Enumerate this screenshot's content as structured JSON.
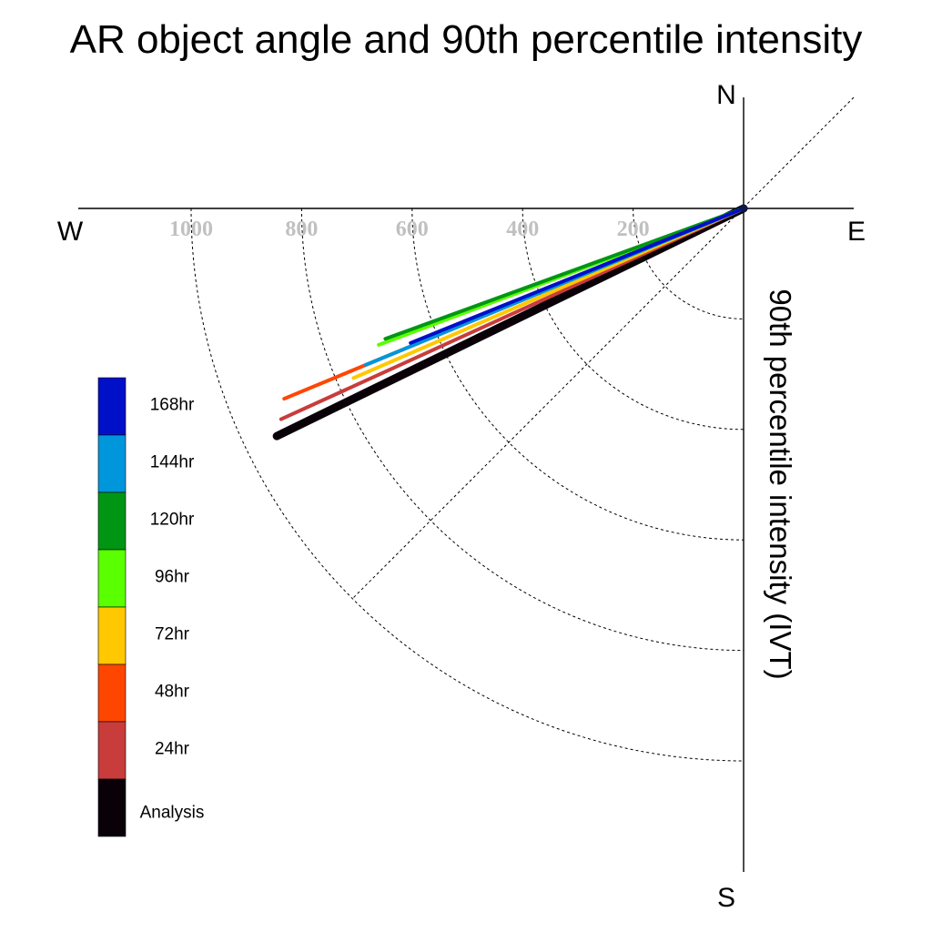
{
  "chart_data": {
    "type": "polar-vector",
    "title": "AR object angle and 90th percentile intensity",
    "radial_label": "90th percentile intensity (IVT)",
    "compass": {
      "north": "N",
      "south": "S",
      "east": "E",
      "west": "W"
    },
    "radial_ticks": [
      200,
      400,
      600,
      800,
      1000
    ],
    "radial_max": 1200,
    "angle_unit": "degrees counter-clockwise from East",
    "grid": true,
    "legend_position": "left",
    "series": [
      {
        "name": "168hr",
        "color": "#0010c8",
        "angle": 202.0,
        "intensity": 650
      },
      {
        "name": "144hr",
        "color": "#0096dc",
        "angle": 202.5,
        "intensity": 740
      },
      {
        "name": "120hr",
        "color": "#009614",
        "angle": 200.0,
        "intensity": 690
      },
      {
        "name": "96hr",
        "color": "#5aff00",
        "angle": 200.5,
        "intensity": 705
      },
      {
        "name": "72hr",
        "color": "#ffc800",
        "angle": 203.5,
        "intensity": 770
      },
      {
        "name": "48hr",
        "color": "#ff4600",
        "angle": 202.5,
        "intensity": 900
      },
      {
        "name": "24hr",
        "color": "#c83c3c",
        "angle": 204.5,
        "intensity": 920
      },
      {
        "name": "Analysis",
        "color": "#0a0008",
        "angle": 206.0,
        "intensity": 940
      }
    ]
  }
}
